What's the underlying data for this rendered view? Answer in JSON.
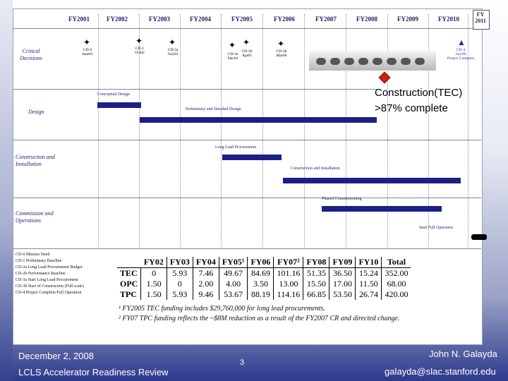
{
  "timeline": {
    "fiscal_years": [
      "FY2001",
      "FY2002",
      "FY2003",
      "FY2004",
      "FY2005",
      "FY2006",
      "FY2007",
      "FY2008",
      "FY2009",
      "FY2010",
      "FY 2011"
    ]
  },
  "rows": {
    "critical_decisions": "Critical Decisions",
    "design": "Design",
    "construction": "Construction and Installation",
    "commission": "Commission and Operations"
  },
  "milestones": [
    {
      "code": "CD-0",
      "date": "June01"
    },
    {
      "code": "CD-1",
      "date": "Oct02"
    },
    {
      "code": "CD-2a",
      "date": "July03"
    },
    {
      "code": "CD-3a",
      "date": "Dec04"
    },
    {
      "code": "CD-2b",
      "date": "Apr05"
    },
    {
      "code": "CD-3b",
      "date": "Mar06"
    },
    {
      "code": "CD-4",
      "date": "July09",
      "note": "Project Complete"
    }
  ],
  "bars": {
    "conceptual_design": "Conceptual Design",
    "prelim_design": "Preliminary and Detailed Design",
    "long_lead": "Long Lead Procurement",
    "construction_install": "Construction and Installation",
    "phased_commissioning": "Phased Commissioning",
    "start_full_operation": "Start Full Operation"
  },
  "callout": {
    "line1": "Construction(TEC)",
    "line2": ">87% complete"
  },
  "legend": [
    "CD-0  Mission Need",
    "CD-1  Preliminary Baseline",
    "CD-2a Long Lead Procurement Budget",
    "CD-2b Performance Baseline",
    "CD-3a Start Long Lead Procurement",
    "CD-3b Start of Construction (Full scale)",
    "CD-4  Project Complete/Full Operation"
  ],
  "funding_table": {
    "headers": [
      "",
      "FY02",
      "FY03",
      "FY04",
      "FY05¹",
      "FY06",
      "FY07²",
      "FY08",
      "FY09",
      "FY10",
      "Total"
    ],
    "rows": [
      {
        "label": "TEC",
        "values": [
          "0",
          "5.93",
          "7.46",
          "49.67",
          "84.69",
          "101.16",
          "51.35",
          "36.50",
          "15.24",
          "352.00"
        ]
      },
      {
        "label": "OPC",
        "values": [
          "1.50",
          "0",
          "2.00",
          "4.00",
          "3.50",
          "13.00",
          "15.50",
          "17.00",
          "11.50",
          "68.00"
        ]
      },
      {
        "label": "TPC",
        "values": [
          "1.50",
          "5.93",
          "9.46",
          "53.67",
          "88.19",
          "114.16",
          "66.85",
          "53.50",
          "26.74",
          "420.00"
        ]
      }
    ]
  },
  "footnotes": {
    "fn1": "¹ FY2005 TEC funding includes $29,760,000 for long lead procurements.",
    "fn2": "² FY07 TPC funding reflects the ~$8M reduction as a result of the FY2007 CR and directed change."
  },
  "footer": {
    "date": "December 2, 2008",
    "event": "LCLS Accelerator Readiness Review",
    "page": "3",
    "author": "John N. Galayda",
    "email": "galayda@slac.stanford.edu"
  }
}
